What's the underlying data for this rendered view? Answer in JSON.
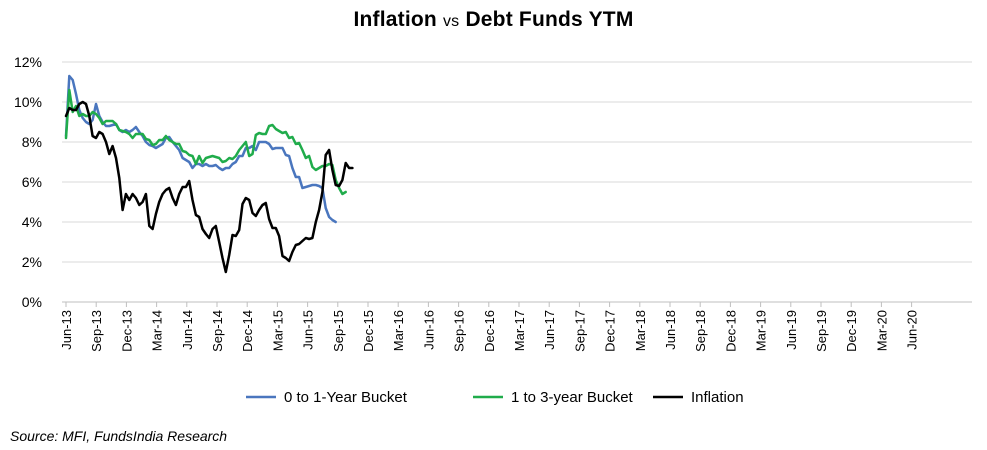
{
  "chart_data": {
    "type": "line",
    "title_part1": "Inflation",
    "title_vs": "vs",
    "title_part2": "Debt Funds YTM",
    "source": "Source: MFI, FundsIndia Research",
    "ylim": [
      0,
      12
    ],
    "y_ticks": [
      "0%",
      "2%",
      "4%",
      "6%",
      "8%",
      "10%",
      "12%"
    ],
    "x_tick_labels": [
      "Jun-13",
      "Sep-13",
      "Dec-13",
      "Mar-14",
      "Jun-14",
      "Sep-14",
      "Dec-14",
      "Mar-15",
      "Jun-15",
      "Sep-15",
      "Dec-15",
      "Mar-16",
      "Jun-16",
      "Sep-16",
      "Dec-16",
      "Mar-17",
      "Jun-17",
      "Sep-17",
      "Dec-17",
      "Mar-18",
      "Jun-18",
      "Sep-18",
      "Dec-18",
      "Mar-19",
      "Jun-19",
      "Sep-19",
      "Dec-19",
      "Mar-20",
      "Jun-20"
    ],
    "legend_position": "bottom",
    "series": [
      {
        "name": "0 to 1-Year Bucket",
        "color": "#4A76BE",
        "values": [
          8.3,
          11.3,
          11.1,
          10.4,
          9.6,
          9.2,
          9.0,
          8.9,
          9.1,
          9.9,
          9.3,
          9.0,
          8.8,
          8.8,
          8.85,
          8.9,
          8.6,
          8.5,
          8.6,
          8.5,
          8.6,
          8.75,
          8.5,
          8.3,
          8.0,
          7.85,
          7.8,
          7.7,
          7.8,
          7.9,
          8.2,
          8.25,
          8.0,
          7.8,
          7.6,
          7.2,
          7.1,
          7.0,
          6.7,
          6.9,
          6.9,
          6.8,
          6.9,
          6.8,
          6.8,
          6.85,
          6.7,
          6.6,
          6.7,
          6.7,
          6.9,
          7.0,
          7.3,
          7.3,
          7.7,
          7.7,
          7.8,
          7.6,
          8.0,
          8.0,
          8.0,
          7.9,
          7.65,
          7.7,
          7.7,
          7.7,
          7.35,
          7.3,
          6.7,
          6.25,
          6.25,
          5.7,
          5.75,
          5.8,
          5.85,
          5.85,
          5.8,
          5.7,
          4.7,
          4.25,
          4.1,
          4.0
        ]
      },
      {
        "name": "1 to 3-year Bucket",
        "color": "#20AC4B",
        "values": [
          8.2,
          10.6,
          9.5,
          9.8,
          9.3,
          9.4,
          9.3,
          9.3,
          9.5,
          9.4,
          9.2,
          8.9,
          9.05,
          9.05,
          9.05,
          8.9,
          8.6,
          8.55,
          8.5,
          8.4,
          8.2,
          8.4,
          8.4,
          8.4,
          8.15,
          8.1,
          7.85,
          7.9,
          8.1,
          8.1,
          8.3,
          8.1,
          8.0,
          7.9,
          7.9,
          7.55,
          7.5,
          7.35,
          7.3,
          6.9,
          7.3,
          6.95,
          7.2,
          7.25,
          7.3,
          7.25,
          7.2,
          7.0,
          7.05,
          7.2,
          7.15,
          7.3,
          7.6,
          7.8,
          8.0,
          7.3,
          7.4,
          8.35,
          8.45,
          8.4,
          8.4,
          8.8,
          8.85,
          8.65,
          8.55,
          8.45,
          8.5,
          8.2,
          8.25,
          7.9,
          7.95,
          7.6,
          7.2,
          7.3,
          6.75,
          6.6,
          6.7,
          6.8,
          6.8,
          6.9,
          6.85,
          6.1,
          5.7,
          5.4,
          5.5
        ]
      },
      {
        "name": "Inflation",
        "color": "#000000",
        "values": [
          9.3,
          9.7,
          9.6,
          9.6,
          9.9,
          10.0,
          9.9,
          9.3,
          8.3,
          8.2,
          8.5,
          8.4,
          8.0,
          7.4,
          7.8,
          7.2,
          6.2,
          4.6,
          5.4,
          5.1,
          5.4,
          5.2,
          4.85,
          5.0,
          5.4,
          3.8,
          3.65,
          4.4,
          5.0,
          5.4,
          5.6,
          5.7,
          5.2,
          4.85,
          5.4,
          5.75,
          5.75,
          6.05,
          5.1,
          4.35,
          4.25,
          3.65,
          3.4,
          3.2,
          3.65,
          3.8,
          3.0,
          2.2,
          1.5,
          2.35,
          3.35,
          3.3,
          3.6,
          4.9,
          5.2,
          5.1,
          4.45,
          4.3,
          4.6,
          4.85,
          4.95,
          4.15,
          3.7,
          3.7,
          3.3,
          2.3,
          2.2,
          2.05,
          2.5,
          2.85,
          2.9,
          3.05,
          3.2,
          3.15,
          3.2,
          4.0,
          4.6,
          5.5,
          7.35,
          7.6,
          6.6,
          5.85,
          5.8,
          6.1,
          6.95,
          6.7,
          6.7
        ]
      }
    ]
  }
}
